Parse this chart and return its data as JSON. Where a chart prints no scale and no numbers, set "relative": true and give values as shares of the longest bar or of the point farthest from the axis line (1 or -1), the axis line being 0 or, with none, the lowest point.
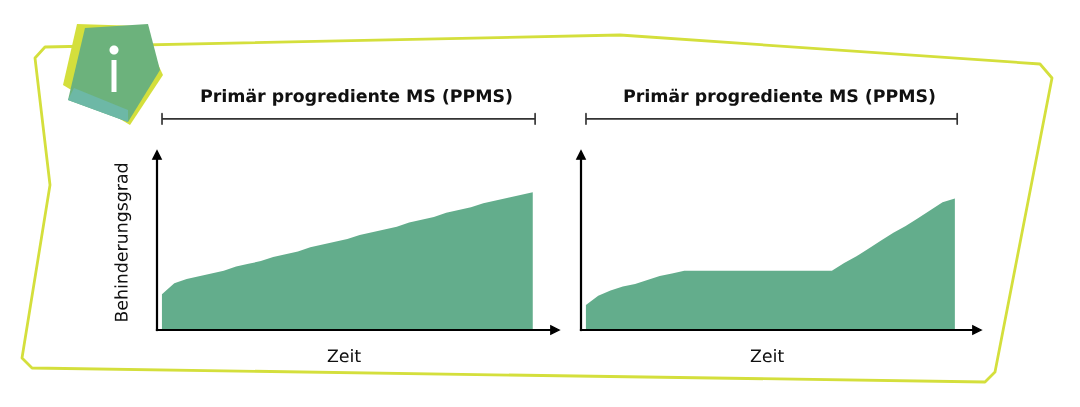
{
  "chart_data": [
    {
      "type": "area",
      "title": "Primär progrediente MS (PPMS)",
      "xlabel": "Zeit",
      "ylabel": "Behinderungsgrad",
      "relative": true,
      "color": "#63ad8c",
      "categories": [
        null,
        null,
        null,
        null,
        null,
        null,
        null,
        null,
        null,
        null,
        null,
        null,
        null,
        null,
        null,
        null,
        null,
        null,
        null,
        null,
        null,
        null,
        null,
        null,
        null,
        null,
        null,
        null,
        null,
        null,
        null
      ],
      "values": [
        0.26,
        0.34,
        0.37,
        0.39,
        0.41,
        0.43,
        0.46,
        0.48,
        0.5,
        0.53,
        0.55,
        0.57,
        0.6,
        0.62,
        0.64,
        0.66,
        0.69,
        0.71,
        0.73,
        0.75,
        0.78,
        0.8,
        0.82,
        0.85,
        0.87,
        0.89,
        0.92,
        0.94,
        0.96,
        0.98,
        1.0
      ]
    },
    {
      "type": "area",
      "title": "Primär progrediente MS (PPMS)",
      "xlabel": "Zeit",
      "relative": true,
      "color": "#63ad8c",
      "categories": [
        null,
        null,
        null,
        null,
        null,
        null,
        null,
        null,
        null,
        null,
        null,
        null,
        null,
        null,
        null,
        null,
        null,
        null,
        null,
        null,
        null,
        null,
        null,
        null,
        null,
        null,
        null,
        null,
        null,
        null,
        null
      ],
      "values": [
        0.19,
        0.26,
        0.3,
        0.33,
        0.35,
        0.38,
        0.41,
        0.43,
        0.45,
        0.45,
        0.45,
        0.45,
        0.45,
        0.45,
        0.45,
        0.45,
        0.45,
        0.45,
        0.45,
        0.45,
        0.45,
        0.51,
        0.56,
        0.62,
        0.68,
        0.74,
        0.79,
        0.85,
        0.91,
        0.97,
        1.0
      ]
    }
  ]
}
